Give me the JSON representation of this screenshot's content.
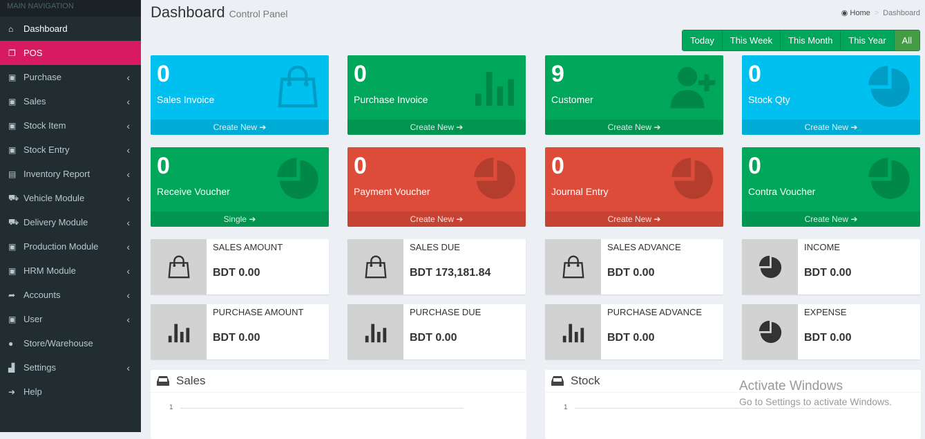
{
  "sidebar": {
    "header": "MAIN NAVIGATION",
    "items": [
      {
        "label": "Dashboard",
        "icon": "home-icon",
        "glyph": "⌂",
        "active": true,
        "chev": false
      },
      {
        "label": "POS",
        "icon": "copy-icon",
        "glyph": "❐",
        "pos": true,
        "chev": false
      },
      {
        "label": "Purchase",
        "icon": "money-icon",
        "glyph": "▣",
        "chev": true
      },
      {
        "label": "Sales",
        "icon": "money-icon",
        "glyph": "▣",
        "chev": true
      },
      {
        "label": "Stock Item",
        "icon": "money-icon",
        "glyph": "▣",
        "chev": true
      },
      {
        "label": "Stock Entry",
        "icon": "money-icon",
        "glyph": "▣",
        "chev": true
      },
      {
        "label": "Inventory Report",
        "icon": "file-pdf-icon",
        "glyph": "▤",
        "chev": true
      },
      {
        "label": "Vehicle Module",
        "icon": "truck-icon",
        "glyph": "⛟",
        "chev": true
      },
      {
        "label": "Delivery Module",
        "icon": "truck-icon",
        "glyph": "⛟",
        "chev": true
      },
      {
        "label": "Production Module",
        "icon": "money-icon",
        "glyph": "▣",
        "chev": true
      },
      {
        "label": "HRM Module",
        "icon": "money-icon",
        "glyph": "▣",
        "chev": true
      },
      {
        "label": "Accounts",
        "icon": "share-icon",
        "glyph": "➦",
        "chev": true
      },
      {
        "label": "User",
        "icon": "money-icon",
        "glyph": "▣",
        "chev": true
      },
      {
        "label": "Store/Warehouse",
        "icon": "map-marker-icon",
        "glyph": "●",
        "chev": false
      },
      {
        "label": "Settings",
        "icon": "area-chart-icon",
        "glyph": "▟",
        "chev": true
      },
      {
        "label": "Help",
        "icon": "arrow-circle-right-icon",
        "glyph": "➜",
        "chev": false
      }
    ]
  },
  "header": {
    "title": "Dashboard",
    "subtitle": "Control Panel",
    "breadcrumb": [
      "Home",
      "Dashboard"
    ],
    "breadcrumb_sep": ">"
  },
  "filters": [
    {
      "label": "Today"
    },
    {
      "label": "This Week"
    },
    {
      "label": "This Month"
    },
    {
      "label": "This Year"
    },
    {
      "label": "All",
      "selected": true
    }
  ],
  "boxes": [
    {
      "value": "0",
      "label": "Sales Invoice",
      "link": "Create New",
      "color": "aqua",
      "icon": "shopping-bag-icon"
    },
    {
      "value": "0",
      "label": "Purchase Invoice",
      "link": "Create New",
      "color": "green",
      "icon": "bar-chart-icon"
    },
    {
      "value": "9",
      "label": "Customer",
      "link": "Create New",
      "color": "green",
      "icon": "user-plus-icon"
    },
    {
      "value": "0",
      "label": "Stock Qty",
      "link": "Create New",
      "color": "aqua",
      "icon": "pie-chart-icon"
    },
    {
      "value": "0",
      "label": "Receive Voucher",
      "link": "Single",
      "color": "green",
      "icon": "pie-chart-icon"
    },
    {
      "value": "0",
      "label": "Payment Voucher",
      "link": "Create New",
      "color": "red",
      "icon": "pie-chart-icon"
    },
    {
      "value": "0",
      "label": "Journal Entry",
      "link": "Create New",
      "color": "red",
      "icon": "pie-chart-icon"
    },
    {
      "value": "0",
      "label": "Contra Voucher",
      "link": "Create New",
      "color": "green",
      "icon": "pie-chart-icon"
    }
  ],
  "info": [
    {
      "title": "SALES AMOUNT",
      "value": "BDT 0.00",
      "icon": "shopping-bag-icon"
    },
    {
      "title": "SALES DUE",
      "value": "BDT 173,181.84",
      "icon": "shopping-bag-icon"
    },
    {
      "title": "SALES ADVANCE",
      "value": "BDT 0.00",
      "icon": "shopping-bag-icon"
    },
    {
      "title": "INCOME",
      "value": "BDT 0.00",
      "icon": "pie-chart-icon"
    },
    {
      "title": "PURCHASE AMOUNT",
      "value": "BDT 0.00",
      "icon": "bar-chart-icon"
    },
    {
      "title": "PURCHASE DUE",
      "value": "BDT 0.00",
      "icon": "bar-chart-icon"
    },
    {
      "title": "PURCHASE ADVANCE",
      "value": "BDT 0.00",
      "icon": "bar-chart-icon"
    },
    {
      "title": "EXPENSE",
      "value": "BDT 0.00",
      "icon": "pie-chart-icon"
    }
  ],
  "panels": [
    {
      "title": "Sales",
      "tick": "1"
    },
    {
      "title": "Stock",
      "tick": "1"
    }
  ],
  "watermark": {
    "line1": "Activate Windows",
    "line2": "Go to Settings to activate Windows."
  },
  "colors": {
    "aqua": "#00c0ef",
    "green": "#00a65a",
    "red": "#dd4b39",
    "pos": "#d81b60",
    "sidebar": "#222d32"
  }
}
